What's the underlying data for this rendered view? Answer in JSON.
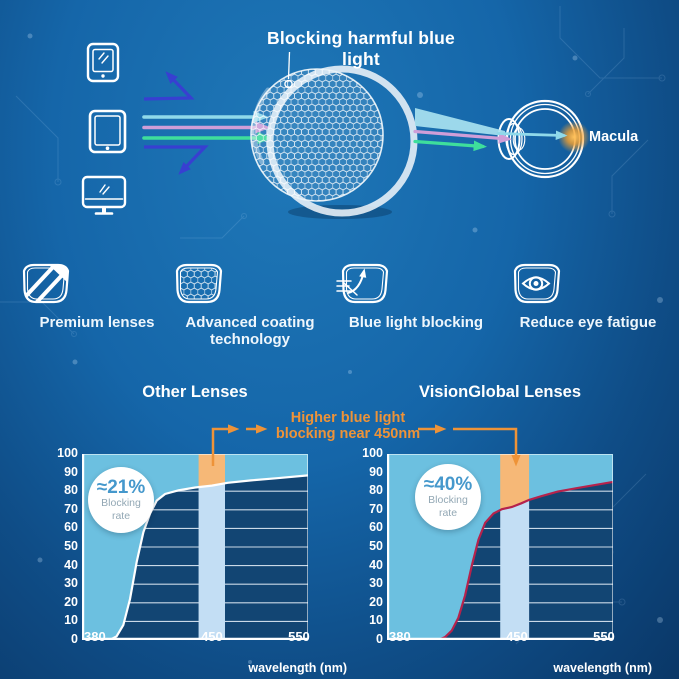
{
  "colors": {
    "accent_orange": "#ee9338",
    "indigo_arrow": "#383fd1",
    "cyan_ray": "#8fd9ea",
    "pink_ray": "#cf9ed8",
    "green_ray": "#3ede9c",
    "chart_fill": "#6cc0e0",
    "band_fill": "#c3def4",
    "band_highlight": "#f6b877",
    "plot_bg": "#124573",
    "badge_value": "#4598cc",
    "crimson_curve": "#b5224c"
  },
  "hero": {
    "title": "Blocking harmful blue light",
    "macula_label": "Macula",
    "device_icons": [
      "smartphone-icon",
      "tablet-icon",
      "monitor-icon"
    ]
  },
  "features": [
    {
      "icon": "premium-lens-icon",
      "label": "Premium lenses"
    },
    {
      "icon": "coating-honeycomb-icon",
      "label": "Advanced coating technology"
    },
    {
      "icon": "blue-light-deflect-icon",
      "label": "Blue light blocking"
    },
    {
      "icon": "eye-comfort-icon",
      "label": "Reduce eye fatigue"
    }
  ],
  "annotation": {
    "line1": "Higher blue light",
    "line2": "blocking near 450nm"
  },
  "chart_data": [
    {
      "type": "area",
      "title": "Other Lenses",
      "xlabel": "wavelength (nm)",
      "x_ticks": [
        380,
        450,
        550
      ],
      "y_ticks": [
        0,
        10,
        20,
        30,
        40,
        50,
        60,
        70,
        80,
        90,
        100
      ],
      "ylim": [
        0,
        100
      ],
      "grid": true,
      "badge": {
        "value": "≈21%",
        "line1": "Blocking",
        "line2": "rate"
      },
      "band_nm": [
        442,
        465
      ],
      "curve_color": "#ffffff",
      "curve": [
        [
          372,
          0
        ],
        [
          389,
          0
        ],
        [
          393,
          2
        ],
        [
          397,
          8
        ],
        [
          401,
          22
        ],
        [
          405,
          42
        ],
        [
          409,
          58
        ],
        [
          413,
          68
        ],
        [
          417,
          75
        ],
        [
          422,
          78.5
        ],
        [
          430,
          80.5
        ],
        [
          440,
          82
        ],
        [
          450,
          83
        ],
        [
          468,
          84.5
        ],
        [
          495,
          85.8
        ],
        [
          525,
          87
        ],
        [
          560,
          88.5
        ]
      ]
    },
    {
      "type": "area",
      "title": "VisionGlobal Lenses",
      "xlabel": "wavelength (nm)",
      "x_ticks": [
        380,
        450,
        550
      ],
      "y_ticks": [
        0,
        10,
        20,
        30,
        40,
        50,
        60,
        70,
        80,
        90,
        100
      ],
      "ylim": [
        0,
        100
      ],
      "grid": true,
      "badge": {
        "value": "≈40%",
        "line1": "Blocking",
        "line2": "rate"
      },
      "band_nm": [
        440,
        464
      ],
      "curve_color": "#b5224c",
      "curve": [
        [
          372,
          0
        ],
        [
          403,
          0
        ],
        [
          407,
          1.5
        ],
        [
          411,
          5
        ],
        [
          415,
          12
        ],
        [
          419,
          24
        ],
        [
          423,
          40
        ],
        [
          427,
          54
        ],
        [
          431,
          63
        ],
        [
          436,
          68
        ],
        [
          441,
          70.3
        ],
        [
          447,
          71.5
        ],
        [
          455,
          73.5
        ],
        [
          464,
          75.3
        ],
        [
          478,
          77.3
        ],
        [
          497,
          79.8
        ],
        [
          520,
          81.8
        ],
        [
          560,
          85
        ]
      ]
    }
  ]
}
